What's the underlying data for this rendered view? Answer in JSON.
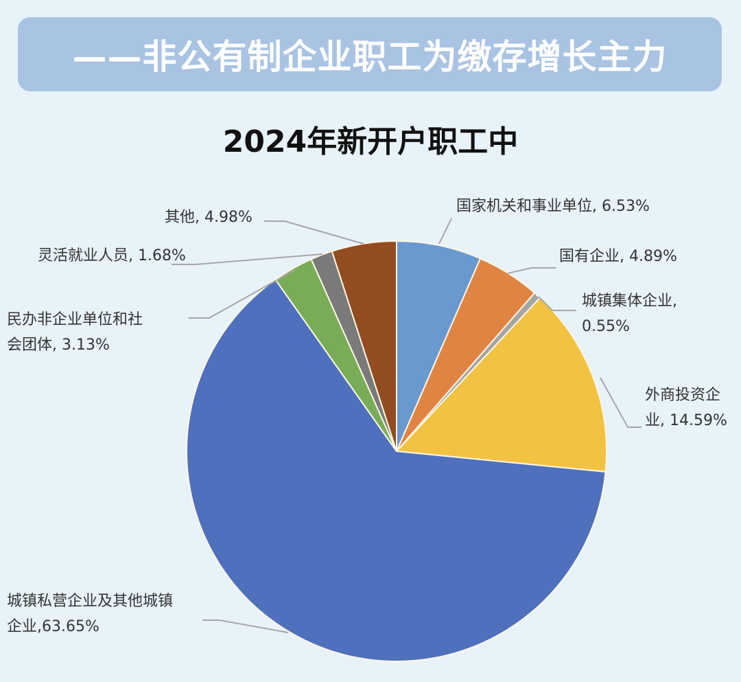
{
  "banner": {
    "text": "——非公有制企业职工为缴存增长主力"
  },
  "chart_data": {
    "type": "pie",
    "title": "2024年新开户职工中",
    "slices": [
      {
        "name": "国家机关和事业单位",
        "value": 6.53,
        "label": [
          "国家机关和事业单位, 6.53%"
        ],
        "color": "#6a99d0"
      },
      {
        "name": "国有企业",
        "value": 4.89,
        "label": [
          "国有企业, 4.89%"
        ],
        "color": "#e08443"
      },
      {
        "name": "城镇集体企业",
        "value": 0.55,
        "label": [
          "城镇集体企业,",
          "0.55%"
        ],
        "color": "#a5a5a5"
      },
      {
        "name": "外商投资企业",
        "value": 14.59,
        "label": [
          "外商投资企",
          "业, 14.59%"
        ],
        "color": "#f2c242"
      },
      {
        "name": "城镇私营企业及其他城镇企业",
        "value": 63.65,
        "label": [
          "城镇私营企业及其他城镇",
          "企业,63.65%"
        ],
        "color": "#4e70bd"
      },
      {
        "name": "民办非企业单位和社会团体",
        "value": 3.13,
        "label": [
          "民办非企业单位和社",
          "会团体, 3.13%"
        ],
        "color": "#79ac57"
      },
      {
        "name": "灵活就业人员",
        "value": 1.68,
        "label": [
          "灵活就业人员, 1.68%"
        ],
        "color": "#7a7a7a"
      },
      {
        "name": "其他",
        "value": 4.98,
        "label": [
          "其他, 4.98%"
        ],
        "color": "#924c20"
      }
    ]
  }
}
